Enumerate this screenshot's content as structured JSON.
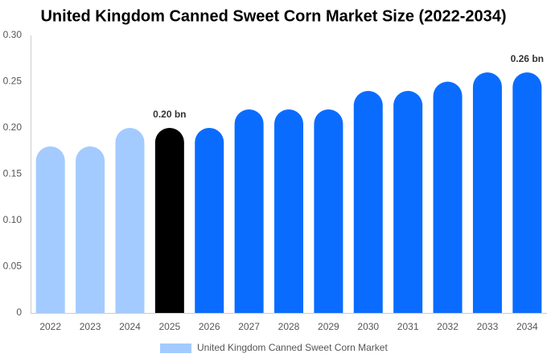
{
  "chart_data": {
    "type": "bar",
    "title": "United Kingdom Canned Sweet Corn Market Size (2022-2034)",
    "categories": [
      "2022",
      "2023",
      "2024",
      "2025",
      "2026",
      "2027",
      "2028",
      "2029",
      "2030",
      "2031",
      "2032",
      "2033",
      "2034"
    ],
    "series": [
      {
        "name": "United Kingdom Canned Sweet Corn Market",
        "color": "#a3cbff",
        "values": [
          0.18,
          0.18,
          0.2,
          0.2,
          0.2,
          0.22,
          0.22,
          0.22,
          0.24,
          0.24,
          0.25,
          0.26,
          0.26
        ],
        "value_labels": [
          null,
          null,
          null,
          "0.20 bn",
          null,
          null,
          null,
          null,
          null,
          null,
          null,
          null,
          "0.26 bn"
        ]
      }
    ],
    "bar_colors": [
      "#a3cbff",
      "#a3cbff",
      "#a3cbff",
      "#000000",
      "#0a6cff",
      "#0a6cff",
      "#0a6cff",
      "#0a6cff",
      "#0a6cff",
      "#0a6cff",
      "#0a6cff",
      "#0a6cff",
      "#0a6cff"
    ],
    "ylim": [
      0,
      0.3
    ],
    "yticks": [
      0,
      0.05,
      {
        "value": 0.1,
        "label": "0.10"
      },
      0.15,
      {
        "value": 0.2,
        "label": "0.20"
      },
      0.25,
      {
        "value": 0.3,
        "label": "0.30"
      }
    ],
    "grid": false
  }
}
